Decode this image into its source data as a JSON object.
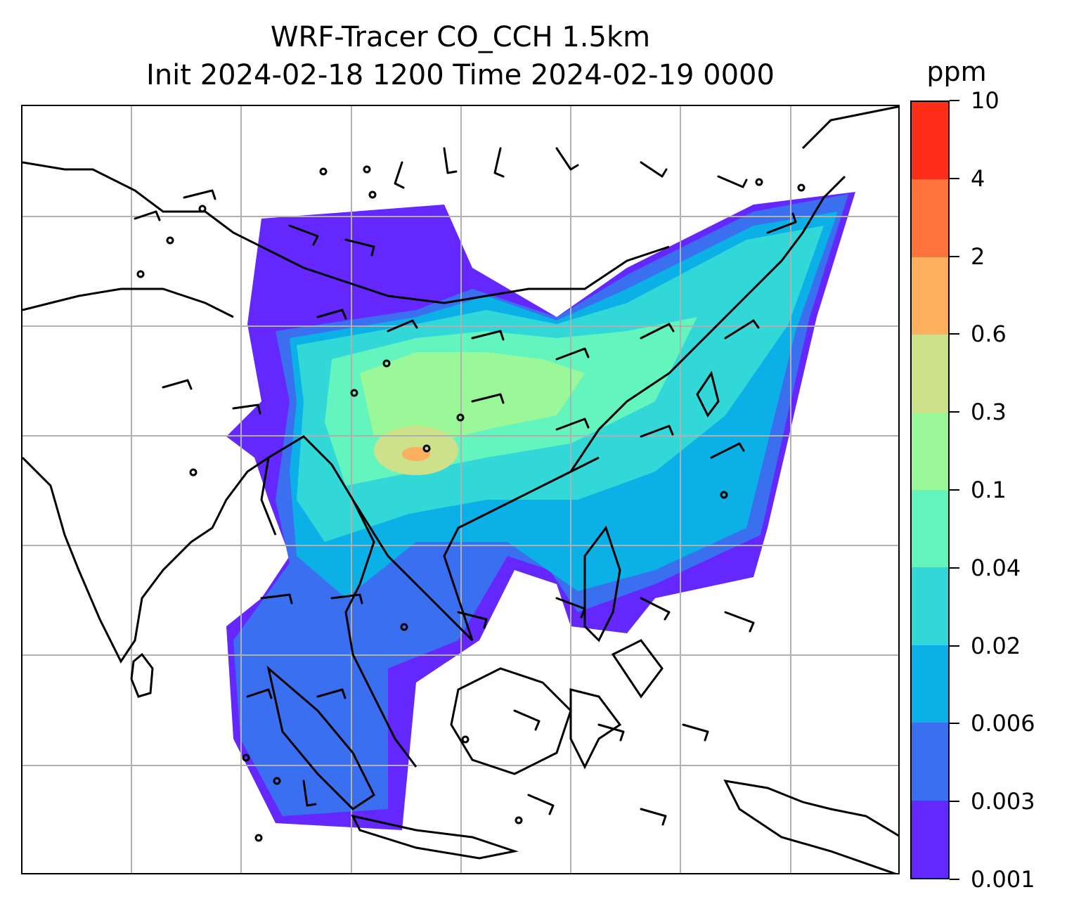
{
  "header": {
    "title_line1": "WRF-Tracer CO_CCH 1.5km",
    "title_line2": "Init 2024-02-18 1200 Time 2024-02-19 0000"
  },
  "colorbar": {
    "units": "ppm",
    "levels": [
      "0.001",
      "0.003",
      "0.006",
      "0.02",
      "0.04",
      "0.1",
      "0.3",
      "0.6",
      "2",
      "4",
      "10"
    ],
    "colors": [
      "#6428FF",
      "#3A70F0",
      "#0BB0E6",
      "#32D7D7",
      "#64F5BE",
      "#9AF898",
      "#CDE08A",
      "#FCB05E",
      "#FF723C",
      "#FF2E19"
    ]
  },
  "map": {
    "variable": "CO_CCH tracer concentration",
    "level": "1.5km",
    "gridlines": "on",
    "overlay": "wind barbs",
    "regions_shown": [
      "South Asia",
      "Southeast Asia",
      "Southern China",
      "Philippines",
      "Indonesia"
    ]
  }
}
